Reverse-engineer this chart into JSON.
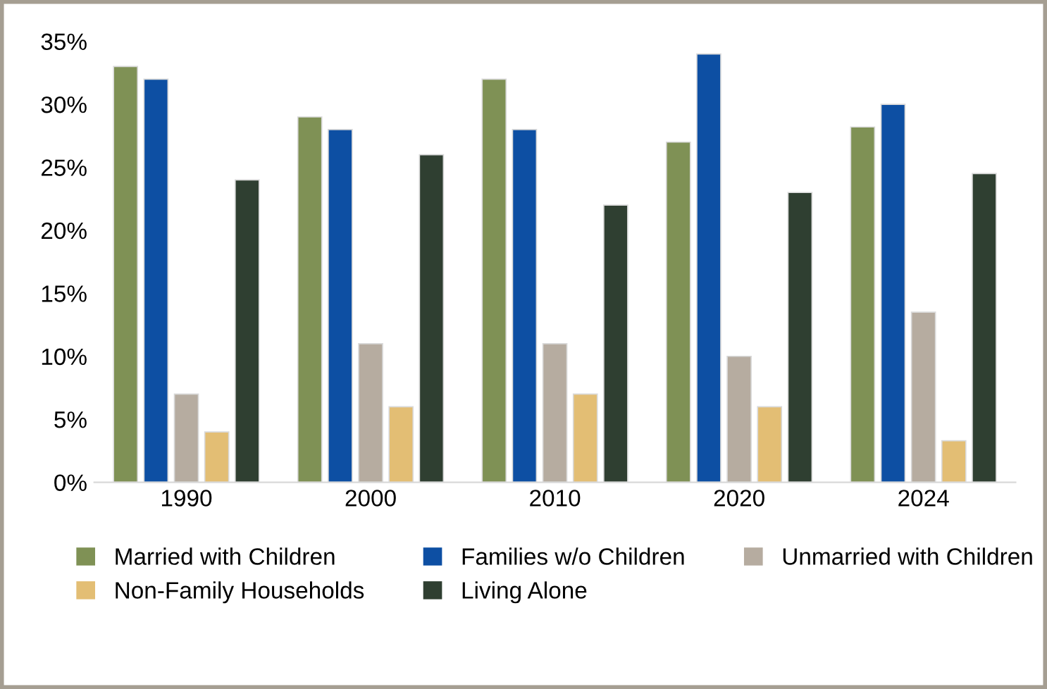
{
  "chart_data": {
    "type": "bar",
    "categories": [
      "1990",
      "2000",
      "2010",
      "2020",
      "2024"
    ],
    "series": [
      {
        "name": "Married with Children",
        "color": "#7f9155",
        "values": [
          33,
          29,
          32,
          27,
          28.2
        ]
      },
      {
        "name": "Families w/o Children",
        "color": "#0d4fa3",
        "values": [
          32,
          28,
          28,
          34,
          30
        ]
      },
      {
        "name": "Unmarried with Children",
        "color": "#b6aca0",
        "values": [
          7,
          11,
          11,
          10,
          13.5
        ]
      },
      {
        "name": "Non-Family Households",
        "color": "#e3be74",
        "values": [
          4,
          6,
          7,
          6,
          3.3
        ]
      },
      {
        "name": "Living Alone",
        "color": "#2f3f31",
        "values": [
          24,
          26,
          22,
          23,
          24.5
        ]
      }
    ],
    "ylim": [
      0,
      35
    ],
    "yticks": [
      {
        "value": 0,
        "label": "0%"
      },
      {
        "value": 5,
        "label": "5%"
      },
      {
        "value": 10,
        "label": "10%"
      },
      {
        "value": 15,
        "label": "15%"
      },
      {
        "value": 20,
        "label": "20%"
      },
      {
        "value": 25,
        "label": "25%"
      },
      {
        "value": 30,
        "label": "30%"
      },
      {
        "value": 35,
        "label": "35%"
      }
    ],
    "grid": false,
    "legend": "bottom"
  }
}
